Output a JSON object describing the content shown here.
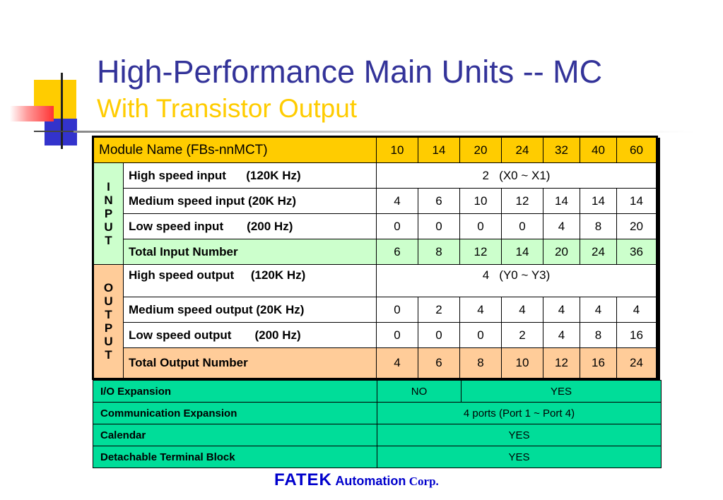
{
  "title": "High-Performance Main Units -- MC",
  "subtitle": "With Transistor Output",
  "spec_table": {
    "header_label": "Module Name (FBs-nnMCT)",
    "models": [
      "10",
      "14",
      "20",
      "24",
      "32",
      "40",
      "60"
    ],
    "input_group_letters": [
      "I",
      "N",
      "P",
      "U",
      "T"
    ],
    "output_group_letters": [
      "O",
      "U",
      "T",
      "P",
      "U",
      "T"
    ],
    "input_rows": {
      "high": {
        "label": "High speed input      (120K Hz)",
        "value": "2   (X0 ~ X1)"
      },
      "medium": {
        "label": "Medium speed input (20K Hz)",
        "values": [
          "4",
          "6",
          "10",
          "12",
          "14",
          "14",
          "14"
        ]
      },
      "low": {
        "label": "Low speed input       (200 Hz)",
        "values": [
          "0",
          "0",
          "0",
          "0",
          "4",
          "8",
          "20"
        ]
      },
      "total": {
        "label": "Total Input Number",
        "values": [
          "6",
          "8",
          "12",
          "14",
          "20",
          "24",
          "36"
        ]
      }
    },
    "output_rows": {
      "high": {
        "label": "High speed output     (120K Hz)",
        "value": "4   (Y0 ~ Y3)"
      },
      "medium": {
        "label": "Medium speed output (20K Hz)",
        "values": [
          "0",
          "2",
          "4",
          "4",
          "4",
          "4",
          "4"
        ]
      },
      "low": {
        "label": "Low speed output       (200 Hz)",
        "values": [
          "0",
          "0",
          "0",
          "2",
          "4",
          "8",
          "16"
        ]
      },
      "total": {
        "label": "Total Output Number",
        "values": [
          "4",
          "6",
          "8",
          "10",
          "12",
          "16",
          "24"
        ]
      }
    }
  },
  "features_table": {
    "io_expansion": {
      "label": "I/O Expansion",
      "value_a": "NO",
      "value_b": "YES"
    },
    "communication": {
      "label": "Communication Expansion",
      "value": "4 ports (Port 1 ~ Port 4)"
    },
    "calendar": {
      "label": "Calendar",
      "value": "YES"
    },
    "terminal_block": {
      "label": "Detachable Terminal Block",
      "value": "YES"
    },
    "background_color": "#00dd99"
  },
  "footer": {
    "brand": "FATEK",
    "automation": "Automation",
    "corp": "Corp."
  },
  "colors": {
    "title": "#333399",
    "subtitle": "#ffcc00",
    "header": "#ffcc00",
    "input_bg": "#ccffcc",
    "output_bg": "#ffcc99",
    "footer": "#0000cc"
  }
}
